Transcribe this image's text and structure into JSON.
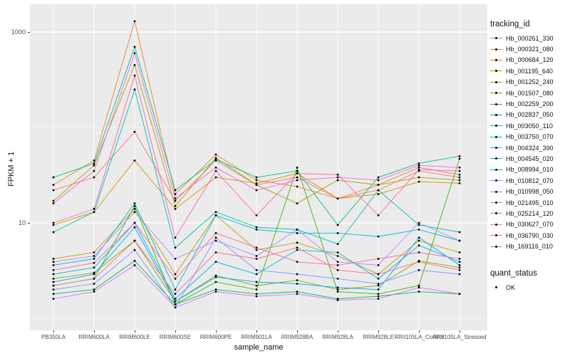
{
  "chart_data": {
    "type": "line",
    "title": "",
    "xlabel": "sample_name",
    "ylabel": "FPKM + 1",
    "y_scale": "log10",
    "panel_bg": "#EBEBEB",
    "grid_color": "#FFFFFF",
    "point_color": "#000000",
    "y_ticks": [
      {
        "value": 1000,
        "label": "1000"
      },
      {
        "value": 10,
        "label": "10"
      }
    ],
    "y_minor": [
      100,
      1
    ],
    "categories": [
      "PB350LA",
      "RRIM600LA",
      "RRIM600LE",
      "RRIM600SE",
      "RRIM600PE",
      "RRIM901LA",
      "RRIM928BA",
      "RRIM928LA",
      "RRIM928LE",
      "RRII105LA_Control",
      "RRII105LA_Stressed"
    ],
    "legend": {
      "tracking_title": "tracking_id",
      "quant_title": "quant_status",
      "quant_label": "OK"
    },
    "series": [
      {
        "name": "Hb_000261_330",
        "color": "#F8766D",
        "values": [
          22,
          30,
          90,
          17,
          45,
          25,
          30,
          18,
          22,
          35,
          30
        ]
      },
      {
        "name": "Hb_000321_080",
        "color": "#EA8331",
        "values": [
          25,
          45,
          1300,
          20,
          52,
          28,
          24,
          18,
          25,
          38,
          32
        ]
      },
      {
        "name": "Hb_000684_120",
        "color": "#D89000",
        "values": [
          9.5,
          13,
          45,
          14,
          30,
          26,
          33,
          18,
          20,
          27,
          26
        ]
      },
      {
        "name": "Hb_001195_640",
        "color": "#C09B00",
        "values": [
          4.2,
          4.9,
          14,
          2.9,
          12,
          5.2,
          6.2,
          4.5,
          2.9,
          6.5,
          4.9
        ]
      },
      {
        "name": "Hb_001252_240",
        "color": "#A3A500",
        "values": [
          17,
          40,
          450,
          15,
          48,
          25,
          16,
          28,
          25,
          30,
          28
        ]
      },
      {
        "name": "Hb_001507_080",
        "color": "#7CAE00",
        "values": [
          2.6,
          3.0,
          6.5,
          1.5,
          2.8,
          2.2,
          2.5,
          2.0,
          2.2,
          4.0,
          3.4
        ]
      },
      {
        "name": "Hb_002259_200",
        "color": "#39B600",
        "values": [
          2.2,
          2.6,
          15,
          1.4,
          2.4,
          2.0,
          38,
          1.9,
          1.8,
          2.2,
          47
        ]
      },
      {
        "name": "Hb_002837_050",
        "color": "#00BB4E",
        "values": [
          1.8,
          2.0,
          4.0,
          1.4,
          2.0,
          1.8,
          1.9,
          1.6,
          1.7,
          1.9,
          1.8
        ]
      },
      {
        "name": "Hb_003050_110",
        "color": "#00C087",
        "values": [
          30,
          42,
          700,
          22,
          46,
          30,
          35,
          9.5,
          30,
          42,
          50
        ]
      },
      {
        "name": "Hb_003750_070",
        "color": "#00C0B2",
        "values": [
          8,
          13,
          250,
          5.5,
          13,
          9,
          8.5,
          6.0,
          22,
          9.5,
          8
        ]
      },
      {
        "name": "Hb_004324_390",
        "color": "#00BDD3",
        "values": [
          3.6,
          4.2,
          16,
          2.0,
          12,
          8.5,
          7.8,
          7.8,
          7.2,
          8.5,
          6.5
        ]
      },
      {
        "name": "Hb_004545_020",
        "color": "#00B4EF",
        "values": [
          2.9,
          3.4,
          10,
          1.6,
          3.9,
          2.9,
          5.2,
          4.9,
          2.6,
          5.8,
          3.9
        ]
      },
      {
        "name": "Hb_008994_010",
        "color": "#00A5FF",
        "values": [
          2.4,
          2.9,
          9,
          1.5,
          2.7,
          2.4,
          2.3,
          2.1,
          2.0,
          7.0,
          3.6
        ]
      },
      {
        "name": "Hb_010812_070",
        "color": "#7997FF",
        "values": [
          2.0,
          2.3,
          5.2,
          1.3,
          7.0,
          3.2,
          2.9,
          2.6,
          2.3,
          3.2,
          2.9
        ]
      },
      {
        "name": "Hb_010998_050",
        "color": "#AC88FF",
        "values": [
          3.9,
          4.5,
          13,
          4.2,
          6.5,
          4.5,
          8.5,
          3.9,
          3.6,
          10,
          6.5
        ]
      },
      {
        "name": "Hb_021495_010",
        "color": "#DC71FA",
        "values": [
          1.6,
          1.9,
          3.6,
          1.3,
          1.9,
          1.7,
          1.8,
          1.55,
          1.6,
          2.1,
          1.8
        ]
      },
      {
        "name": "Hb_025214_120",
        "color": "#F763E0",
        "values": [
          16,
          35,
          600,
          18,
          38,
          22,
          28,
          30,
          28,
          40,
          38
        ]
      },
      {
        "name": "Hb_030627_070",
        "color": "#FF64B0",
        "values": [
          10,
          14,
          350,
          7.0,
          35,
          12,
          33,
          32,
          12,
          36,
          35
        ]
      },
      {
        "name": "Hb_036790_030",
        "color": "#FF6A98",
        "values": [
          3.2,
          3.8,
          10,
          2.6,
          7.8,
          5.5,
          3.9,
          3.6,
          4.2,
          4.9,
          4.2
        ]
      },
      {
        "name": "Hb_169116_010",
        "color": "#FC717F",
        "values": [
          2.2,
          2.6,
          6.5,
          1.8,
          4.9,
          4.2,
          5.5,
          3.2,
          2.9,
          3.9,
          3.2
        ]
      }
    ]
  }
}
